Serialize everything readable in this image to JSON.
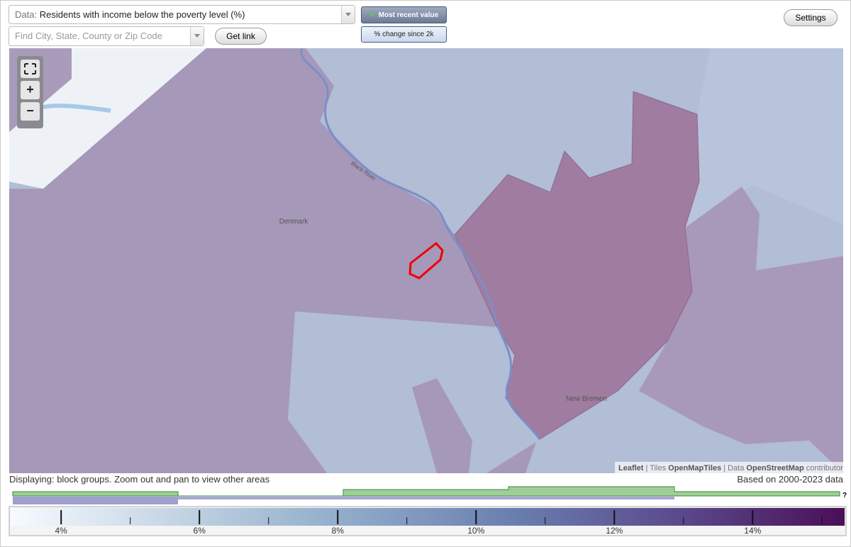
{
  "controls": {
    "data_label": "Data:",
    "data_value": "Residents with income below the poverty level (%)",
    "search_placeholder": "Find City, State, County or Zip Code",
    "get_link": "Get link",
    "most_recent": "Most recent value",
    "pct_change": "% change since 2k",
    "settings": "Settings"
  },
  "map": {
    "places": [
      "Denmark",
      "New Bremen"
    ],
    "rivers": [
      "Black River"
    ],
    "zoom": [
      "+",
      "−"
    ],
    "attribution": [
      "Leaflet",
      "|",
      "Tiles",
      "OpenMapTiles",
      "|",
      "Data",
      "OpenStreetMap",
      "contributors"
    ]
  },
  "status": {
    "displaying": "Displaying: block groups. Zoom out and pan to view other areas",
    "based_on": "Based on 2000-2023 data"
  },
  "legend": {
    "range": [
      3.27,
      15.33
    ],
    "ticks": [
      {
        "value": 4,
        "label": "4%"
      },
      {
        "value": 6,
        "label": "6%"
      },
      {
        "value": 8,
        "label": "8%"
      },
      {
        "value": 10,
        "label": "10%"
      },
      {
        "value": 12,
        "label": "12%"
      },
      {
        "value": 14,
        "label": "14%"
      }
    ],
    "minor_ticks": [
      5,
      7,
      9,
      11,
      13,
      15
    ],
    "help": "?"
  }
}
